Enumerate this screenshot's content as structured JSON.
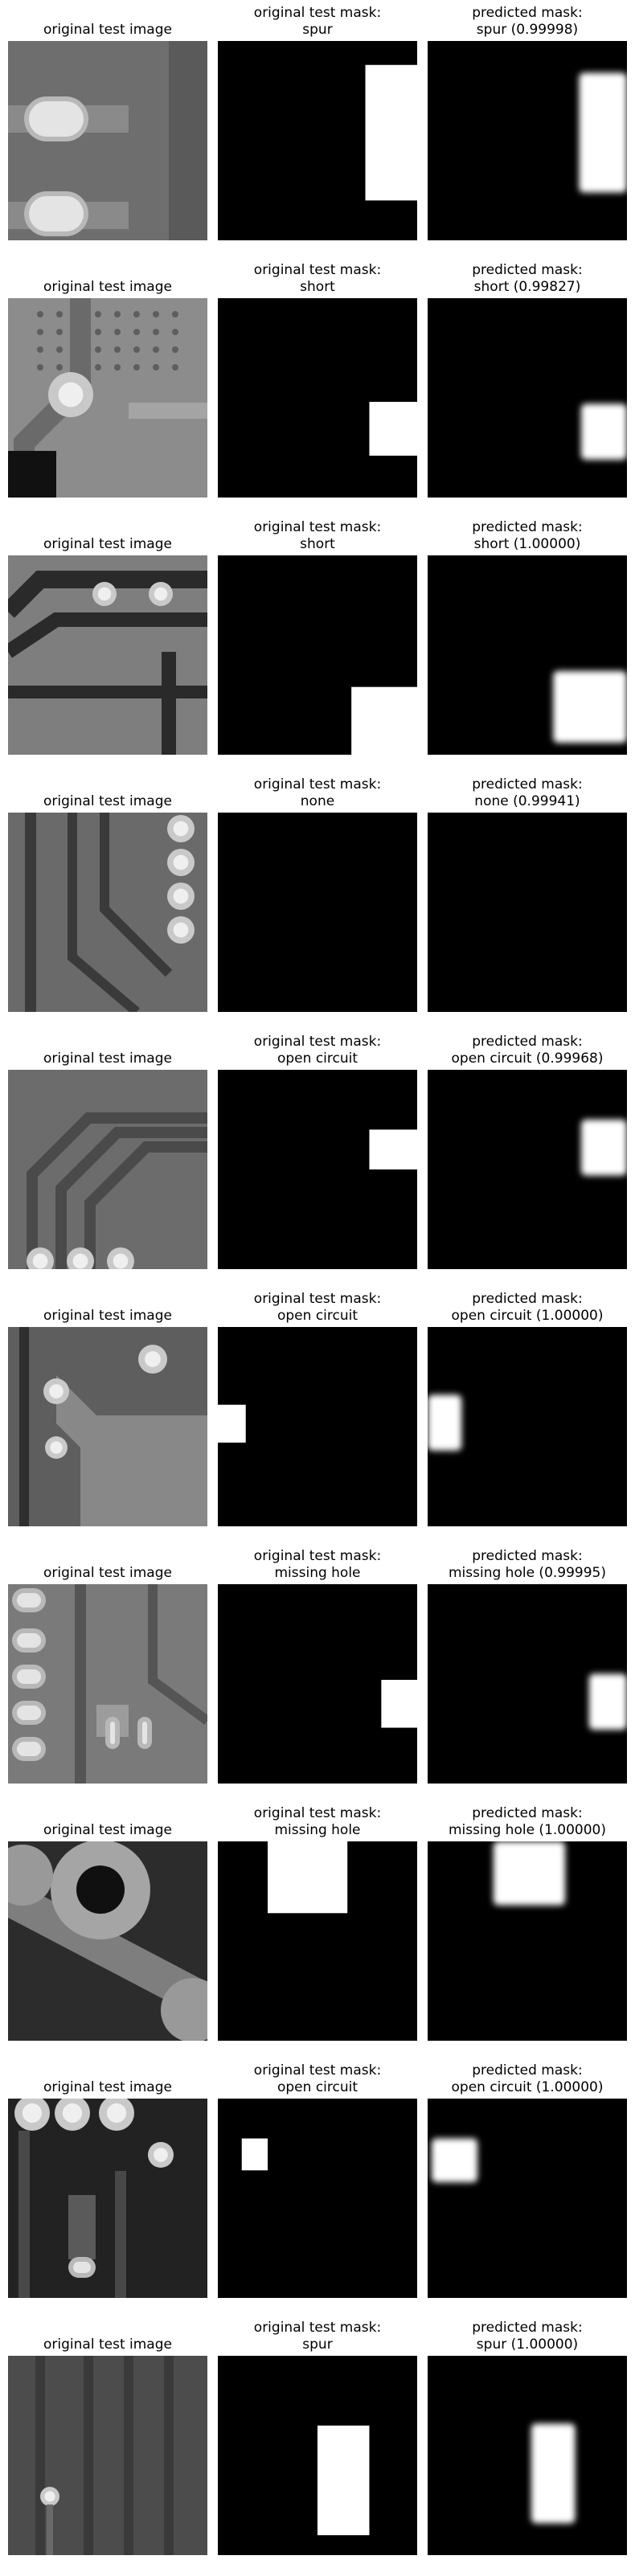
{
  "labels": {
    "original_image": "original test image",
    "original_mask": "original test mask:",
    "predicted_mask": "predicted mask:"
  },
  "rows": [
    {
      "true_label": "spur",
      "pred_caption": "spur (0.99998)",
      "true_rect": [
        0.74,
        0.12,
        0.26,
        0.68
      ],
      "pred_rect": [
        0.76,
        0.16,
        0.24,
        0.6
      ],
      "image_variant": "pads"
    },
    {
      "true_label": "short",
      "pred_caption": "short (0.99827)",
      "true_rect": [
        0.76,
        0.52,
        0.24,
        0.27
      ],
      "pred_rect": [
        0.77,
        0.53,
        0.23,
        0.28
      ],
      "image_variant": "dots"
    },
    {
      "true_label": "short",
      "pred_caption": "short (1.00000)",
      "true_rect": [
        0.67,
        0.66,
        0.33,
        0.34
      ],
      "pred_rect": [
        0.63,
        0.58,
        0.37,
        0.36
      ],
      "image_variant": "traces"
    },
    {
      "true_label": "none",
      "pred_caption": "none (0.99941)",
      "true_rect": null,
      "pred_rect": null,
      "image_variant": "vias"
    },
    {
      "true_label": "open circuit",
      "pred_caption": "open circuit (0.99968)",
      "true_rect": [
        0.76,
        0.3,
        0.24,
        0.2
      ],
      "pred_rect": [
        0.77,
        0.25,
        0.23,
        0.28
      ],
      "image_variant": "bends"
    },
    {
      "true_label": "open circuit",
      "pred_caption": "open circuit (1.00000)",
      "true_rect": [
        0.0,
        0.39,
        0.14,
        0.19
      ],
      "pred_rect": [
        0.0,
        0.34,
        0.17,
        0.28
      ],
      "image_variant": "plane"
    },
    {
      "true_label": "missing hole",
      "pred_caption": "missing hole (0.99995)",
      "true_rect": [
        0.82,
        0.48,
        0.18,
        0.24
      ],
      "pred_rect": [
        0.81,
        0.45,
        0.19,
        0.28
      ],
      "image_variant": "holes"
    },
    {
      "true_label": "missing hole",
      "pred_caption": "missing hole (1.00000)",
      "true_rect": [
        0.25,
        0.0,
        0.4,
        0.36
      ],
      "pred_rect": [
        0.33,
        0.0,
        0.36,
        0.32
      ],
      "image_variant": "ring"
    },
    {
      "true_label": "open circuit",
      "pred_caption": "open circuit (1.00000)",
      "true_rect": [
        0.12,
        0.2,
        0.13,
        0.16
      ],
      "pred_rect": [
        0.02,
        0.2,
        0.23,
        0.22
      ],
      "image_variant": "text"
    },
    {
      "true_label": "spur",
      "pred_caption": "spur (1.00000)",
      "true_rect": [
        0.5,
        0.35,
        0.26,
        0.55
      ],
      "pred_rect": [
        0.52,
        0.34,
        0.22,
        0.5
      ],
      "image_variant": "lines"
    }
  ],
  "colors": {
    "background": "#ffffff",
    "mask_bg": "#000000",
    "mask_fg": "#ffffff"
  }
}
